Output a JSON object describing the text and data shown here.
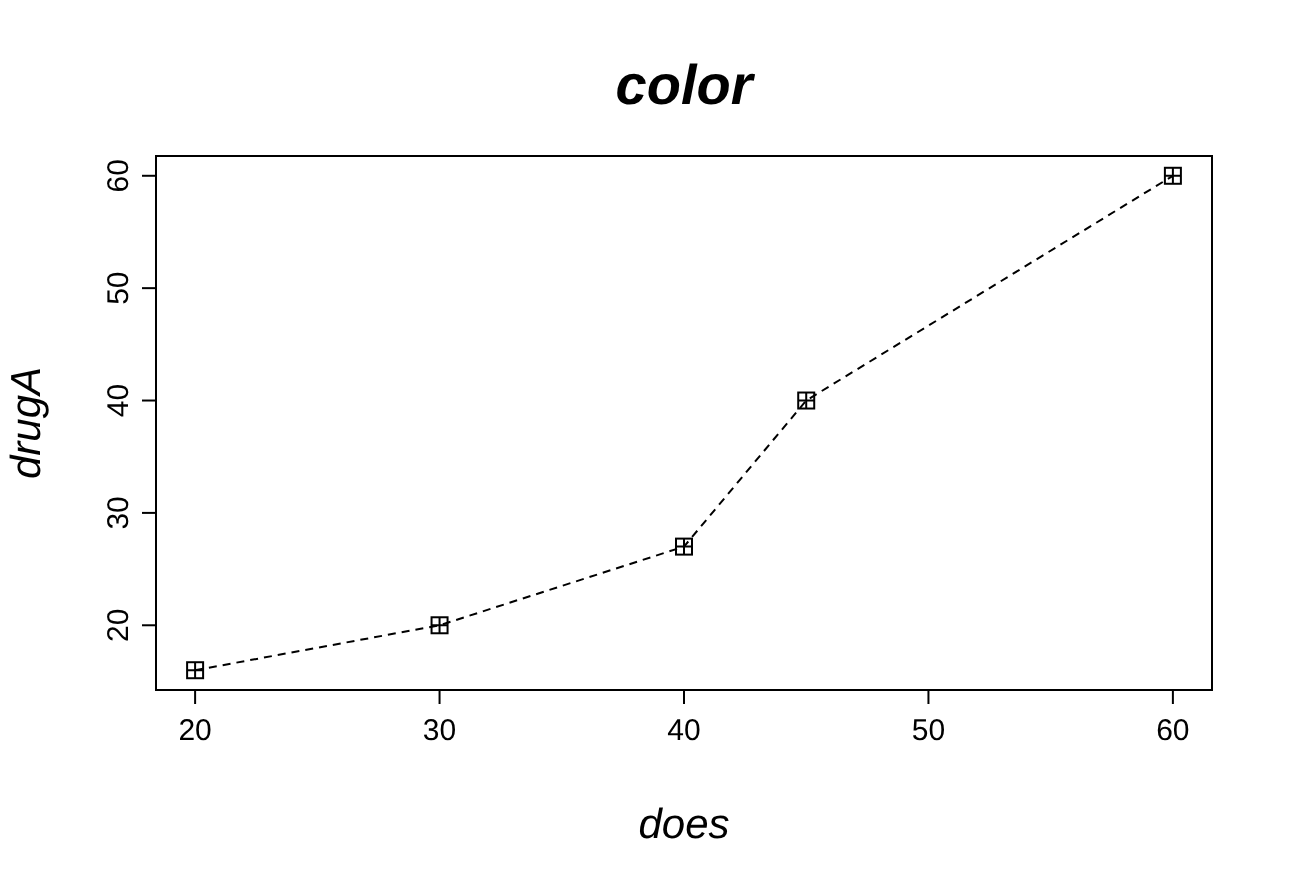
{
  "chart_data": {
    "type": "line",
    "title": "color",
    "xlabel": "does",
    "ylabel": "drugA",
    "x": [
      20,
      30,
      40,
      45,
      60
    ],
    "series": [
      {
        "color": "#000000",
        "values": [
          16,
          20,
          27,
          40,
          60
        ]
      }
    ],
    "xlim": [
      18.4,
      61.6
    ],
    "ylim": [
      14.24,
      61.76
    ],
    "xticks": [
      20,
      30,
      40,
      50,
      60
    ],
    "yticks": [
      20,
      30,
      40,
      50,
      60
    ],
    "grid": false,
    "marker": "square",
    "line_style": "dashed"
  }
}
